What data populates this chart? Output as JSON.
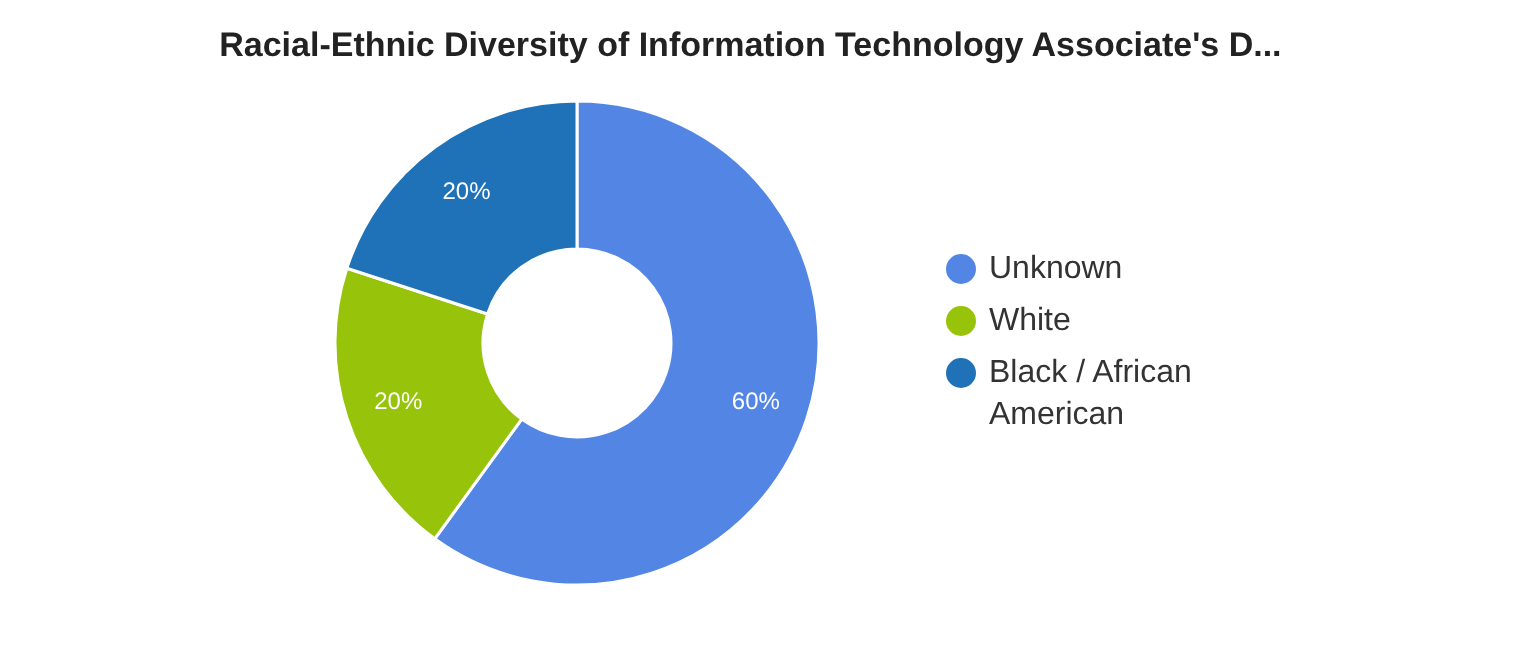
{
  "chart_data": {
    "type": "donut",
    "title": "Racial-Ethnic Diversity of Information Technology Associate's D...",
    "categories": [
      "Unknown",
      "White",
      "Black / African American"
    ],
    "values": [
      60,
      20,
      20
    ],
    "colors": [
      "#5386e4",
      "#97c30a",
      "#1f72b8"
    ],
    "value_labels": [
      "60%",
      "20%",
      "20%"
    ],
    "legend": "right"
  }
}
